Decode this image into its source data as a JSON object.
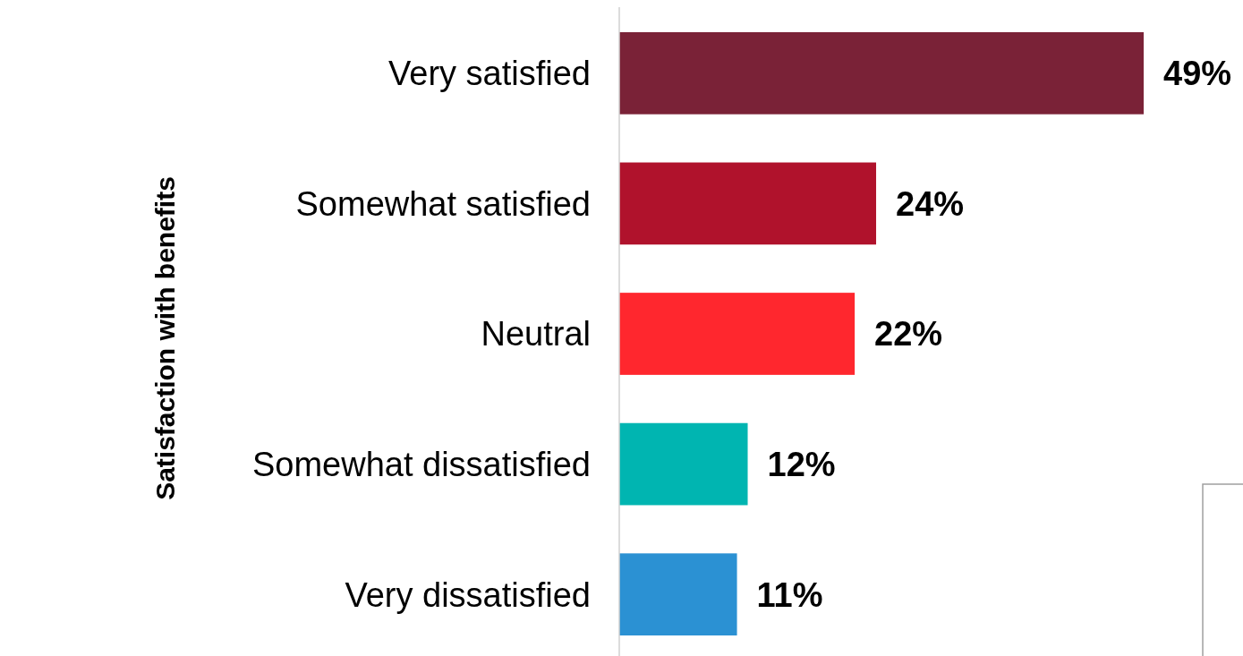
{
  "chart_data": {
    "type": "bar",
    "orientation": "horizontal",
    "ylabel": "Satisfaction with benefits",
    "categories": [
      "Very satisfied",
      "Somewhat satisfied",
      "Neutral",
      "Somewhat dissatisfied",
      "Very dissatisfied"
    ],
    "values": [
      49,
      24,
      22,
      12,
      11
    ],
    "value_labels": [
      "49%",
      "24%",
      "22%",
      "12%",
      "11%"
    ],
    "colors": [
      "#7a2237",
      "#b0122c",
      "#ff272e",
      "#00b5b1",
      "#2b91d3"
    ]
  }
}
